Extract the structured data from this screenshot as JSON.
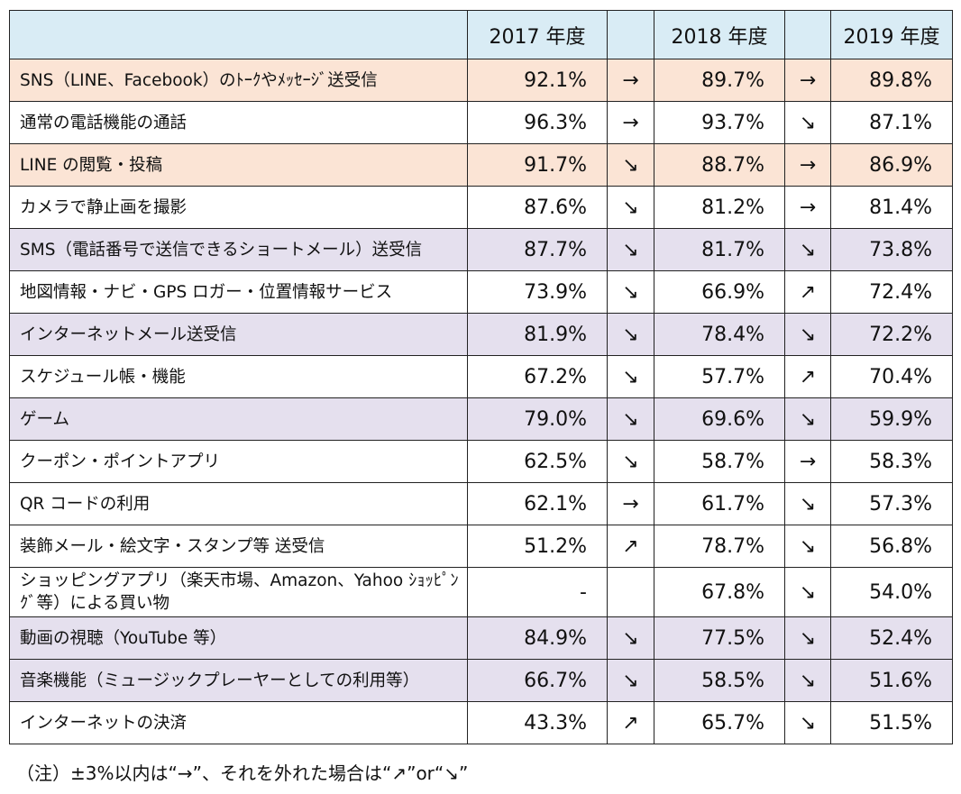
{
  "chart_data": {
    "type": "table",
    "columns": [
      "",
      "2017 年度",
      "",
      "2018 年度",
      "",
      "2019 年度"
    ],
    "rows": [
      {
        "label": "SNS（LINE、Facebook）のﾄｰｸやﾒｯｾｰｼﾞ送受信",
        "v2017": "92.1%",
        "a1": "→",
        "v2018": "89.7%",
        "a2": "→",
        "v2019": "89.8%",
        "bg": "peach"
      },
      {
        "label": "通常の電話機能の通話",
        "v2017": "96.3%",
        "a1": "→",
        "v2018": "93.7%",
        "a2": "↘",
        "v2019": "87.1%",
        "bg": "none"
      },
      {
        "label": "LINE の閲覧・投稿",
        "v2017": "91.7%",
        "a1": "↘",
        "v2018": "88.7%",
        "a2": "→",
        "v2019": "86.9%",
        "bg": "peach"
      },
      {
        "label": "カメラで静止画を撮影",
        "v2017": "87.6%",
        "a1": "↘",
        "v2018": "81.2%",
        "a2": "→",
        "v2019": "81.4%",
        "bg": "none"
      },
      {
        "label": "SMS（電話番号で送信できるショートメール）送受信",
        "v2017": "87.7%",
        "a1": "↘",
        "v2018": "81.7%",
        "a2": "↘",
        "v2019": "73.8%",
        "bg": "lavender"
      },
      {
        "label": "地図情報・ナビ・GPS ロガー・位置情報サービス",
        "v2017": "73.9%",
        "a1": "↘",
        "v2018": "66.9%",
        "a2": "↗",
        "v2019": "72.4%",
        "bg": "none"
      },
      {
        "label": "インターネットメール送受信",
        "v2017": "81.9%",
        "a1": "↘",
        "v2018": "78.4%",
        "a2": "↘",
        "v2019": "72.2%",
        "bg": "lavender"
      },
      {
        "label": "スケジュール帳・機能",
        "v2017": "67.2%",
        "a1": "↘",
        "v2018": "57.7%",
        "a2": "↗",
        "v2019": "70.4%",
        "bg": "none"
      },
      {
        "label": "ゲーム",
        "v2017": "79.0%",
        "a1": "↘",
        "v2018": "69.6%",
        "a2": "↘",
        "v2019": "59.9%",
        "bg": "lavender"
      },
      {
        "label": "クーポン・ポイントアプリ",
        "v2017": "62.5%",
        "a1": "↘",
        "v2018": "58.7%",
        "a2": "→",
        "v2019": "58.3%",
        "bg": "none"
      },
      {
        "label": "QR コードの利用",
        "v2017": "62.1%",
        "a1": "→",
        "v2018": "61.7%",
        "a2": "↘",
        "v2019": "57.3%",
        "bg": "none"
      },
      {
        "label": "装飾メール・絵文字・スタンプ等 送受信",
        "v2017": "51.2%",
        "a1": "↗",
        "v2018": "78.7%",
        "a2": "↘",
        "v2019": "56.8%",
        "bg": "none"
      },
      {
        "label": "ショッピングアプリ（楽天市場、Amazon、Yahoo ｼｮｯﾋﾟﾝｸﾞ等）による買い物",
        "v2017": "-",
        "a1": "",
        "v2018": "67.8%",
        "a2": "↘",
        "v2019": "54.0%",
        "bg": "none",
        "tall": true
      },
      {
        "label": "動画の視聴（YouTube 等）",
        "v2017": "84.9%",
        "a1": "↘",
        "v2018": "77.5%",
        "a2": "↘",
        "v2019": "52.4%",
        "bg": "lavender"
      },
      {
        "label": "音楽機能（ミュージックプレーヤーとしての利用等）",
        "v2017": "66.7%",
        "a1": "↘",
        "v2018": "58.5%",
        "a2": "↘",
        "v2019": "51.6%",
        "bg": "lavender"
      },
      {
        "label": "インターネットの決済",
        "v2017": "43.3%",
        "a1": "↗",
        "v2018": "65.7%",
        "a2": "↘",
        "v2019": "51.5%",
        "bg": "none"
      }
    ],
    "colors": {
      "header": "#d9ecf5",
      "peach": "#fbe4d5",
      "lavender": "#e5e0ee"
    }
  },
  "note": "（注）±3%以内は“→”、それを外れた場合は“↗”or“↘”"
}
